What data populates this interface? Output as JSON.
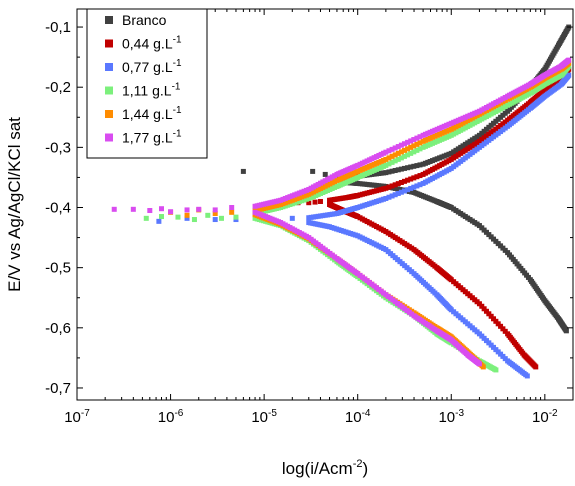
{
  "chart_data": {
    "type": "scatter",
    "title": "",
    "xlabel": {
      "base": "log(i/Acm",
      "sup": "-2",
      "tail": ")"
    },
    "ylabel": "E/V vs Ag/AgCl/KCl sat",
    "x_scale": "log",
    "xlim": [
      1e-07,
      0.02
    ],
    "ylim": [
      -0.72,
      -0.07
    ],
    "x_ticks": [
      {
        "value": 1e-07,
        "base": "10",
        "exp": "-7"
      },
      {
        "value": 1e-06,
        "base": "10",
        "exp": "-6"
      },
      {
        "value": 1e-05,
        "base": "10",
        "exp": "-5"
      },
      {
        "value": 0.0001,
        "base": "10",
        "exp": "-4"
      },
      {
        "value": 0.001,
        "base": "10",
        "exp": "-3"
      },
      {
        "value": 0.01,
        "base": "10",
        "exp": "-2"
      }
    ],
    "y_ticks": [
      {
        "value": -0.1,
        "label": "-0,1"
      },
      {
        "value": -0.2,
        "label": "-0,2"
      },
      {
        "value": -0.3,
        "label": "-0,3"
      },
      {
        "value": -0.4,
        "label": "-0,4"
      },
      {
        "value": -0.5,
        "label": "-0,5"
      },
      {
        "value": -0.6,
        "label": "-0,6"
      },
      {
        "value": -0.7,
        "label": "-0,7"
      }
    ],
    "grid": false,
    "legend_position": "top-left",
    "series": [
      {
        "name": "Branco",
        "legend": {
          "base": "Branco",
          "sup": ""
        },
        "color": "#404040",
        "ecorr": -0.355,
        "scatter": [
          [
            6e-06,
            -0.34
          ],
          [
            3.3e-05,
            -0.34
          ],
          [
            4.5e-05,
            -0.345
          ],
          [
            6e-05,
            -0.35
          ]
        ],
        "anodic": [
          [
            7e-05,
            -0.352
          ],
          [
            0.0001,
            -0.348
          ],
          [
            0.0002,
            -0.342
          ],
          [
            0.0005,
            -0.328
          ],
          [
            0.001,
            -0.31
          ],
          [
            0.002,
            -0.28
          ],
          [
            0.004,
            -0.24
          ],
          [
            0.007,
            -0.2
          ],
          [
            0.01,
            -0.17
          ],
          [
            0.014,
            -0.13
          ],
          [
            0.018,
            -0.1
          ]
        ],
        "cathodic": [
          [
            7e-05,
            -0.358
          ],
          [
            0.0001,
            -0.36
          ],
          [
            0.0002,
            -0.365
          ],
          [
            0.0004,
            -0.375
          ],
          [
            0.0007,
            -0.39
          ],
          [
            0.001,
            -0.4
          ],
          [
            0.002,
            -0.43
          ],
          [
            0.004,
            -0.475
          ],
          [
            0.007,
            -0.52
          ],
          [
            0.01,
            -0.555
          ],
          [
            0.014,
            -0.585
          ],
          [
            0.017,
            -0.605
          ]
        ]
      },
      {
        "name": "0,44 g.L-1",
        "legend": {
          "base": "0,44 g.L",
          "sup": "-1"
        },
        "color": "#c00000",
        "ecorr": -0.39,
        "scatter": [
          [
            1.8e-05,
            -0.395
          ],
          [
            2.3e-05,
            -0.392
          ],
          [
            3e-05,
            -0.392
          ],
          [
            3.5e-05,
            -0.391
          ],
          [
            4e-05,
            -0.39
          ]
        ],
        "anodic": [
          [
            5e-05,
            -0.388
          ],
          [
            8e-05,
            -0.383
          ],
          [
            0.0001,
            -0.38
          ],
          [
            0.0002,
            -0.368
          ],
          [
            0.0005,
            -0.345
          ],
          [
            0.001,
            -0.32
          ],
          [
            0.002,
            -0.29
          ],
          [
            0.004,
            -0.255
          ],
          [
            0.007,
            -0.225
          ],
          [
            0.01,
            -0.205
          ],
          [
            0.015,
            -0.185
          ],
          [
            0.018,
            -0.17
          ]
        ],
        "cathodic": [
          [
            5e-05,
            -0.395
          ],
          [
            7e-05,
            -0.405
          ],
          [
            0.0001,
            -0.415
          ],
          [
            0.0002,
            -0.44
          ],
          [
            0.0004,
            -0.47
          ],
          [
            0.0007,
            -0.5
          ],
          [
            0.001,
            -0.52
          ],
          [
            0.002,
            -0.56
          ],
          [
            0.004,
            -0.61
          ],
          [
            0.006,
            -0.645
          ],
          [
            0.008,
            -0.665
          ]
        ]
      },
      {
        "name": "0,77 g.L-1",
        "legend": {
          "base": "0,77 g.L",
          "sup": "-1"
        },
        "color": "#5a78ff",
        "ecorr": -0.415,
        "scatter": [
          [
            7.5e-07,
            -0.423
          ],
          [
            1.5e-06,
            -0.418
          ],
          [
            3e-06,
            -0.42
          ],
          [
            5e-06,
            -0.42
          ],
          [
            1e-05,
            -0.418
          ],
          [
            2e-05,
            -0.418
          ]
        ],
        "anodic": [
          [
            3e-05,
            -0.417
          ],
          [
            6e-05,
            -0.41
          ],
          [
            0.0001,
            -0.4
          ],
          [
            0.0002,
            -0.385
          ],
          [
            0.0005,
            -0.36
          ],
          [
            0.001,
            -0.335
          ],
          [
            0.002,
            -0.3
          ],
          [
            0.004,
            -0.265
          ],
          [
            0.007,
            -0.235
          ],
          [
            0.01,
            -0.215
          ],
          [
            0.015,
            -0.195
          ],
          [
            0.018,
            -0.18
          ]
        ],
        "cathodic": [
          [
            3e-05,
            -0.425
          ],
          [
            5e-05,
            -0.432
          ],
          [
            0.0001,
            -0.447
          ],
          [
            0.0002,
            -0.47
          ],
          [
            0.0004,
            -0.51
          ],
          [
            0.0007,
            -0.545
          ],
          [
            0.001,
            -0.57
          ],
          [
            0.002,
            -0.61
          ],
          [
            0.004,
            -0.655
          ],
          [
            0.0065,
            -0.68
          ]
        ]
      },
      {
        "name": "1,11 g.L-1",
        "legend": {
          "base": "1,11 g.L",
          "sup": "-1"
        },
        "color": "#7cf07c",
        "ecorr": -0.41,
        "scatter": [
          [
            5.5e-07,
            -0.418
          ],
          [
            8e-07,
            -0.415
          ],
          [
            1.2e-06,
            -0.416
          ],
          [
            1.8e-06,
            -0.42
          ],
          [
            2.5e-06,
            -0.413
          ],
          [
            3.5e-06,
            -0.418
          ],
          [
            5e-06,
            -0.416
          ]
        ],
        "anodic": [
          [
            8e-06,
            -0.41
          ],
          [
            1.5e-05,
            -0.4
          ],
          [
            3e-05,
            -0.385
          ],
          [
            6e-05,
            -0.365
          ],
          [
            0.0001,
            -0.35
          ],
          [
            0.0002,
            -0.33
          ],
          [
            0.0005,
            -0.3
          ],
          [
            0.001,
            -0.28
          ],
          [
            0.002,
            -0.255
          ],
          [
            0.004,
            -0.23
          ],
          [
            0.007,
            -0.21
          ],
          [
            0.01,
            -0.195
          ],
          [
            0.015,
            -0.18
          ],
          [
            0.018,
            -0.165
          ]
        ],
        "cathodic": [
          [
            8e-06,
            -0.418
          ],
          [
            1.5e-05,
            -0.43
          ],
          [
            3e-05,
            -0.455
          ],
          [
            6e-05,
            -0.49
          ],
          [
            0.0001,
            -0.515
          ],
          [
            0.0002,
            -0.55
          ],
          [
            0.0004,
            -0.58
          ],
          [
            0.0007,
            -0.61
          ],
          [
            0.001,
            -0.625
          ],
          [
            0.002,
            -0.655
          ],
          [
            0.003,
            -0.67
          ]
        ]
      },
      {
        "name": "1,44 g.L-1",
        "legend": {
          "base": "1,44 g.L",
          "sup": "-1"
        },
        "color": "#ff8c00",
        "ecorr": -0.405,
        "scatter": [
          [
            1e-06,
            -0.408
          ],
          [
            1.5e-06,
            -0.413
          ],
          [
            2e-06,
            -0.404
          ],
          [
            3e-06,
            -0.41
          ],
          [
            4.5e-06,
            -0.408
          ]
        ],
        "anodic": [
          [
            8e-06,
            -0.405
          ],
          [
            1.5e-05,
            -0.395
          ],
          [
            3e-05,
            -0.378
          ],
          [
            6e-05,
            -0.355
          ],
          [
            0.0001,
            -0.34
          ],
          [
            0.0002,
            -0.32
          ],
          [
            0.0005,
            -0.29
          ],
          [
            0.001,
            -0.27
          ],
          [
            0.002,
            -0.245
          ],
          [
            0.004,
            -0.22
          ],
          [
            0.007,
            -0.2
          ],
          [
            0.01,
            -0.185
          ],
          [
            0.015,
            -0.17
          ],
          [
            0.018,
            -0.16
          ]
        ],
        "cathodic": [
          [
            8e-06,
            -0.412
          ],
          [
            1.5e-05,
            -0.428
          ],
          [
            3e-05,
            -0.452
          ],
          [
            6e-05,
            -0.485
          ],
          [
            0.0001,
            -0.51
          ],
          [
            0.0002,
            -0.545
          ],
          [
            0.0004,
            -0.575
          ],
          [
            0.0007,
            -0.6
          ],
          [
            0.001,
            -0.615
          ],
          [
            0.0015,
            -0.64
          ],
          [
            0.0022,
            -0.665
          ]
        ]
      },
      {
        "name": "1,77 g.L-1",
        "legend": {
          "base": "1,77 g.L",
          "sup": "-1"
        },
        "color": "#d94cf0",
        "ecorr": -0.4,
        "scatter": [
          [
            2.5e-07,
            -0.403
          ],
          [
            4e-07,
            -0.403
          ],
          [
            6e-07,
            -0.405
          ],
          [
            8e-07,
            -0.402
          ],
          [
            1e-06,
            -0.407
          ],
          [
            1.5e-06,
            -0.404
          ],
          [
            2e-06,
            -0.403
          ],
          [
            3e-06,
            -0.404
          ],
          [
            4.5e-06,
            -0.4
          ]
        ],
        "anodic": [
          [
            8e-06,
            -0.398
          ],
          [
            1.5e-05,
            -0.388
          ],
          [
            3e-05,
            -0.37
          ],
          [
            6e-05,
            -0.345
          ],
          [
            0.0001,
            -0.33
          ],
          [
            0.0002,
            -0.308
          ],
          [
            0.0005,
            -0.28
          ],
          [
            0.001,
            -0.26
          ],
          [
            0.002,
            -0.24
          ],
          [
            0.004,
            -0.215
          ],
          [
            0.007,
            -0.195
          ],
          [
            0.01,
            -0.18
          ],
          [
            0.015,
            -0.165
          ],
          [
            0.018,
            -0.155
          ]
        ],
        "cathodic": [
          [
            8e-06,
            -0.408
          ],
          [
            1.5e-05,
            -0.425
          ],
          [
            3e-05,
            -0.45
          ],
          [
            6e-05,
            -0.485
          ],
          [
            0.0001,
            -0.51
          ],
          [
            0.0002,
            -0.545
          ],
          [
            0.0004,
            -0.58
          ],
          [
            0.0007,
            -0.605
          ],
          [
            0.001,
            -0.62
          ],
          [
            0.0015,
            -0.645
          ],
          [
            0.002,
            -0.66
          ]
        ]
      }
    ]
  }
}
